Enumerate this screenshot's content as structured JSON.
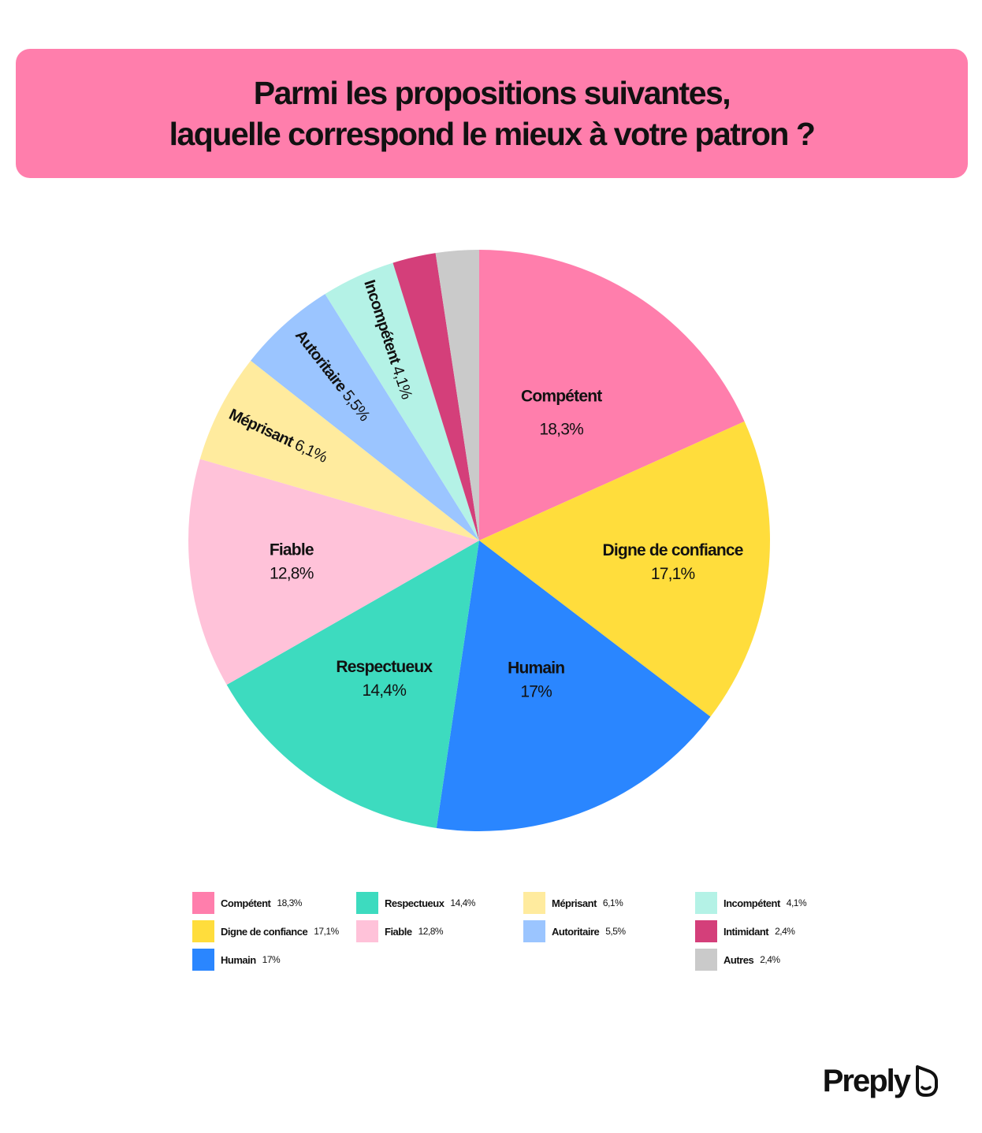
{
  "title_lines": [
    "Parmi les propositions suivantes,",
    "laquelle correspond le mieux à votre patron ?"
  ],
  "chart_data": {
    "type": "pie",
    "title": "Parmi les propositions suivantes, laquelle correspond le mieux à votre patron ?",
    "start_direction": "12 o'clock, clockwise",
    "slices": [
      {
        "label": "Compétent",
        "value": 18.3,
        "value_label": "18,3%",
        "color": "#ff7eac",
        "show_label": true
      },
      {
        "label": "Digne de confiance",
        "value": 17.1,
        "value_label": "17,1%",
        "color": "#ffdd3c",
        "show_label": true
      },
      {
        "label": "Humain",
        "value": 17,
        "value_label": "17%",
        "color": "#2a86ff",
        "show_label": true
      },
      {
        "label": "Respectueux",
        "value": 14.4,
        "value_label": "14,4%",
        "color": "#3ddbbf",
        "show_label": true
      },
      {
        "label": "Fiable",
        "value": 12.8,
        "value_label": "12,8%",
        "color": "#ffc2d9",
        "show_label": true
      },
      {
        "label": "Méprisant",
        "value": 6.1,
        "value_label": "6,1%",
        "color": "#ffeb9e",
        "show_label": true
      },
      {
        "label": "Autoritaire",
        "value": 5.5,
        "value_label": "5,5%",
        "color": "#9bc5ff",
        "show_label": true
      },
      {
        "label": "Incompétent",
        "value": 4.1,
        "value_label": "4,1%",
        "color": "#b4f2e6",
        "show_label": true
      },
      {
        "label": "Intimidant",
        "value": 2.4,
        "value_label": "2,4%",
        "color": "#d43f7a",
        "show_label": false
      },
      {
        "label": "Autres",
        "value": 2.4,
        "value_label": "2,4%",
        "color": "#cacaca",
        "show_label": false
      }
    ],
    "legend": {
      "placement": "bottom",
      "columns": [
        [
          {
            "label": "Compétent",
            "value_label": "18,3%",
            "color": "#ff7eac"
          },
          {
            "label": "Digne de confiance",
            "value_label": "17,1%",
            "color": "#ffdd3c"
          },
          {
            "label": "Humain",
            "value_label": "17%",
            "color": "#2a86ff"
          }
        ],
        [
          {
            "label": "Respectueux",
            "value_label": "14,4%",
            "color": "#3ddbbf"
          },
          {
            "label": "Fiable",
            "value_label": "12,8%",
            "color": "#ffc2d9"
          }
        ],
        [
          {
            "label": "Méprisant",
            "value_label": "6,1%",
            "color": "#ffeb9e"
          },
          {
            "label": "Autoritaire",
            "value_label": "5,5%",
            "color": "#9bc5ff"
          }
        ],
        [
          {
            "label": "Incompétent",
            "value_label": "4,1%",
            "color": "#b4f2e6"
          },
          {
            "label": "Intimidant",
            "value_label": "2,4%",
            "color": "#d43f7a"
          },
          {
            "label": "Autres",
            "value_label": "2,4%",
            "color": "#cacaca"
          }
        ]
      ]
    }
  },
  "brand": {
    "name": "Preply",
    "icon": "preply-logo-icon"
  },
  "colors": {
    "banner": "#ff7eac",
    "text": "#111111",
    "background": "#ffffff"
  }
}
